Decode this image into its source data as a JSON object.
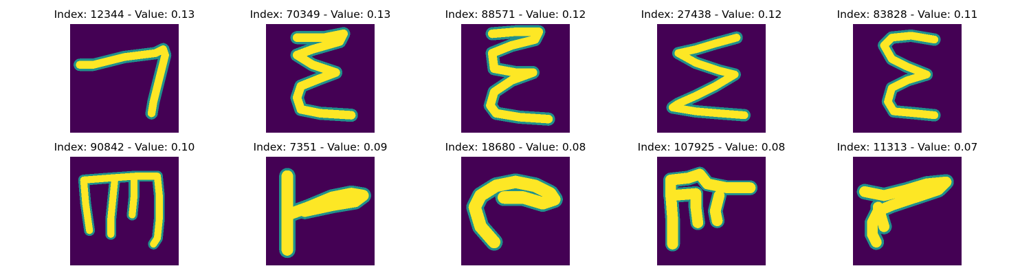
{
  "colors": {
    "background": "#440154",
    "edge": "#21918c",
    "stroke": "#fde725"
  },
  "panels": [
    {
      "title": "Index: 12344 - Value: 0.13"
    },
    {
      "title": "Index: 70349 - Value: 0.13"
    },
    {
      "title": "Index: 88571 - Value: 0.12"
    },
    {
      "title": "Index: 27438 - Value: 0.12"
    },
    {
      "title": "Index: 83828 - Value: 0.11"
    },
    {
      "title": "Index: 90842 - Value: 0.10"
    },
    {
      "title": "Index: 7351 - Value: 0.09"
    },
    {
      "title": "Index: 18680 - Value: 0.08"
    },
    {
      "title": "Index: 107925 - Value: 0.08"
    },
    {
      "title": "Index: 11313 - Value: 0.07"
    }
  ]
}
